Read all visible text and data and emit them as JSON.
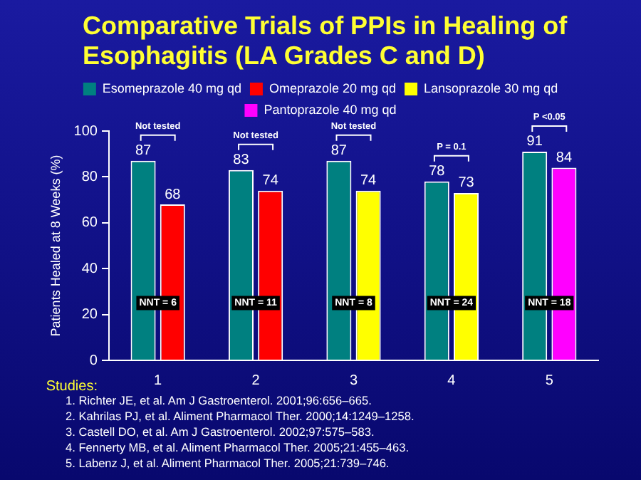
{
  "chart_data": {
    "type": "bar",
    "title": "Comparative Trials of PPIs in Healing of Esophagitis (LA Grades C and D)",
    "xlabel": "Studies:",
    "ylabel": "Patients Healed at 8 Weeks (%)",
    "categories": [
      "1",
      "2",
      "3",
      "4",
      "5"
    ],
    "series": [
      {
        "name": "Esomeprazole 40 mg qd",
        "color": "#008080",
        "values": [
          87,
          83,
          87,
          78,
          91
        ]
      },
      {
        "name": "Omeprazole 20 mg qd",
        "color": "#ff0000",
        "values": [
          68,
          74,
          null,
          null,
          null
        ]
      },
      {
        "name": "Lansoprazole 30 mg qd",
        "color": "#ffff00",
        "values": [
          null,
          null,
          74,
          73,
          null
        ]
      },
      {
        "name": "Pantoprazole 40 mg qd",
        "color": "#ff00ff",
        "values": [
          null,
          null,
          null,
          null,
          84
        ]
      }
    ],
    "ylim": [
      0,
      100
    ],
    "yticks": [
      0,
      20,
      40,
      60,
      80,
      100
    ],
    "grid": false,
    "legend": "top",
    "data_labels": true,
    "annotations": [
      "Not tested",
      "Not tested",
      "Not tested",
      "P = 0.1",
      "P <0.05",
      {
        "text": "NNT = 6",
        "x": "1",
        "y": 25
      },
      {
        "text": "NNT = 11",
        "x": "2",
        "y": 25
      },
      {
        "text": "NNT = 8",
        "x": "3",
        "y": 25
      },
      {
        "text": "NNT = 24",
        "x": "4",
        "y": 25
      },
      {
        "text": "NNT = 18",
        "x": "5",
        "y": 25
      },
      "1. Richter JE, et al. Am J Gastroenterol. 2001;96:656–665.",
      "2. Kahrilas PJ, et al. Aliment Pharmacol Ther. 2000;14:1249–1258.",
      "3. Castell DO, et al. Am J Gastroenterol. 2002;97:575–583.",
      "4. Fennerty MB, et al. Aliment Pharmacol Ther. 2005;21:455–463.",
      "5. Labenz J, et al. Aliment Pharmacol Ther. 2005;21:739–746."
    ]
  }
}
